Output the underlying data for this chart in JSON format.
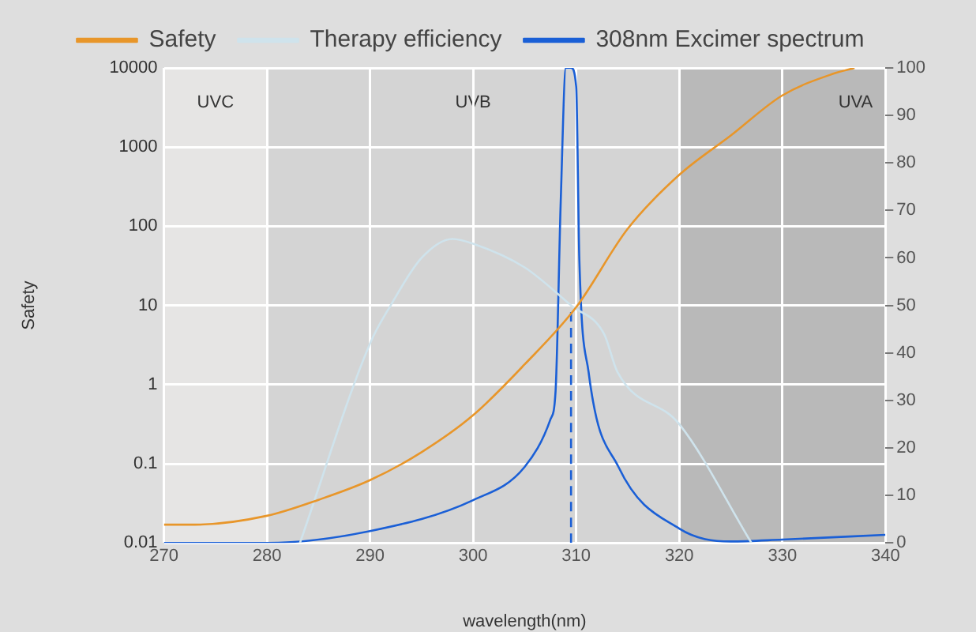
{
  "chart_data": {
    "type": "line",
    "xlabel": "wavelength(nm)",
    "ylabel": "Safety",
    "xlim": [
      270,
      340
    ],
    "xticks": [
      270,
      280,
      290,
      300,
      310,
      320,
      330,
      340
    ],
    "ylim": [
      0.01,
      10000
    ],
    "yticks": [
      0.01,
      0.1,
      1,
      10,
      100,
      1000,
      10000
    ],
    "log": "y",
    "y2lim": [
      0,
      100
    ],
    "y2ticks": [
      0,
      10,
      20,
      30,
      40,
      50,
      60,
      70,
      80,
      90,
      100
    ],
    "grid": true,
    "legend": "top",
    "marker": "none",
    "bands": [
      {
        "axis": "x",
        "from": 270,
        "to": 280,
        "label": "UVC",
        "color": "#e6e5e4"
      },
      {
        "axis": "x",
        "from": 280,
        "to": 320,
        "label": "UVB",
        "color": "#d4d4d4"
      },
      {
        "axis": "x",
        "from": 320,
        "to": 340,
        "label": "UVA",
        "color": "#b9b9b9"
      }
    ],
    "series": [
      {
        "name": "Safety",
        "color": "#e8962a",
        "x": [
          270,
          273,
          280,
          285,
          290,
          295,
          300,
          305,
          310,
          315,
          320,
          325,
          330,
          335,
          337
        ],
        "values": [
          0.017,
          0.017,
          0.022,
          0.035,
          0.062,
          0.14,
          0.41,
          1.8,
          9.5,
          93,
          446,
          1400,
          4500,
          8500,
          10000
        ]
      },
      {
        "name": "Therapy efficiency",
        "color": "#cfe3ec",
        "axis": "y2",
        "x": [
          283.2,
          290,
          292,
          295,
          298,
          300,
          305,
          309.5,
          312.7,
          314,
          320,
          327
        ],
        "values": [
          0,
          42,
          50,
          60,
          64,
          63,
          58,
          50,
          44,
          36,
          25,
          0
        ]
      },
      {
        "name": "308nm Excimer spectrum",
        "color": "#1a5fd6",
        "axis": "y2",
        "x": [
          270,
          280,
          290,
          300,
          305,
          307.5,
          308,
          308.5,
          309,
          309.5,
          310,
          310.3,
          311.2,
          314.1,
          320,
          325,
          330,
          340
        ],
        "values": [
          0,
          0,
          2.5,
          9,
          16,
          26,
          32,
          72,
          100,
          100,
          96,
          60,
          36,
          16,
          3,
          0.3,
          0.7,
          1.7
        ]
      },
      {
        "color": "#1a5fd6",
        "axis": "y2",
        "line_style": "dashed",
        "x": [
          309.5,
          309.5
        ],
        "values": [
          0,
          49
        ]
      }
    ]
  }
}
